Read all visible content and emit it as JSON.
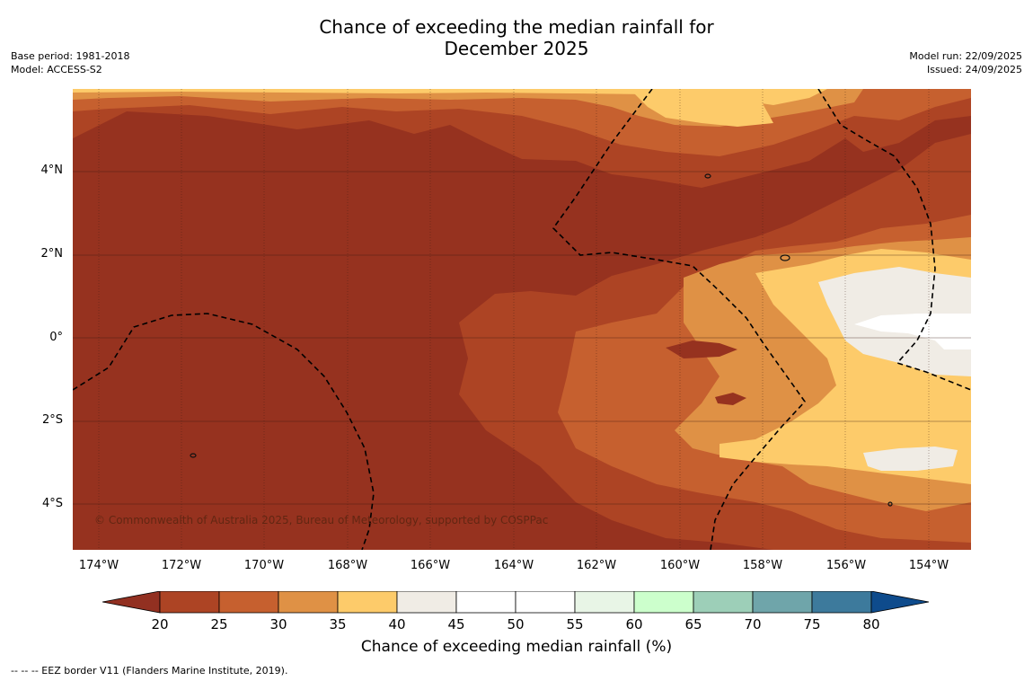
{
  "title_line1": "Chance of exceeding the median rainfall for",
  "title_line2": "December 2025",
  "meta_left": {
    "base_period": "Base period: 1981-2018",
    "model": "Model: ACCESS-S2"
  },
  "meta_right": {
    "model_run": "Model run: 22/09/2025",
    "issued": "Issued: 24/09/2025"
  },
  "x_ticks": [
    "174°W",
    "172°W",
    "170°W",
    "168°W",
    "166°W",
    "164°W",
    "162°W",
    "160°W",
    "158°W",
    "156°W",
    "154°W"
  ],
  "y_ticks": [
    "4°N",
    "2°N",
    "0°",
    "2°S",
    "4°S"
  ],
  "copyright": "© Commonwealth of Australia 2025, Bureau of Meteorology, supported by COSPPac",
  "colorbar": {
    "title": "Chance of exceeding median rainfall (%)",
    "labels": [
      "20",
      "25",
      "30",
      "35",
      "40",
      "45",
      "50",
      "55",
      "60",
      "65",
      "70",
      "75",
      "80"
    ],
    "colors": [
      "#ad4424",
      "#c6602f",
      "#df9145",
      "#fdcb6a",
      "#f0ece5",
      "#ffffff",
      "#ffffff",
      "#e8f5e6",
      "#ccffcc",
      "#9dcfb8",
      "#6fa5aa",
      "#3d7a9c"
    ],
    "low_color": "#923021",
    "high_color": "#0e4b8c"
  },
  "colors": {
    "base": "#96321f",
    "c20_25": "#ad4424",
    "c25_30": "#c6602f",
    "c30_35": "#df9145",
    "c35_40": "#fdcb6a",
    "c40_45": "#f0ece5",
    "c45_55": "#ffffff"
  },
  "footer": "--  --  -- EEZ border V11 (Flanders Marine Institute, 2019)."
}
